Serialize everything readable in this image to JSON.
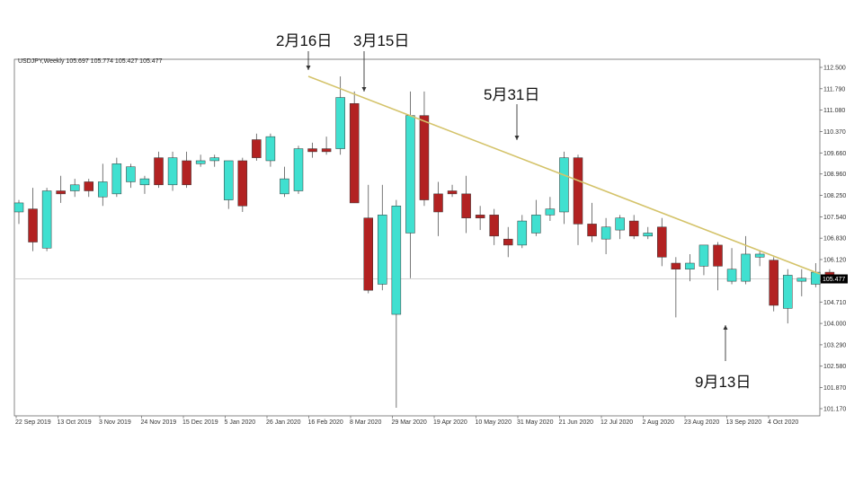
{
  "header": {
    "symbol_line": "USDJPY,Weekly  105.697 105.774 105.427 105.477"
  },
  "annotations": [
    {
      "id": "feb16",
      "text": "2月16日"
    },
    {
      "id": "mar15",
      "text": "3月15日"
    },
    {
      "id": "may31",
      "text": "5月31日"
    },
    {
      "id": "sep13",
      "text": "9月13日"
    }
  ],
  "colors": {
    "up": "#40E0D0",
    "down": "#B22222",
    "trendline": "#D4C36A",
    "outline": "#333333"
  },
  "chart_data": {
    "type": "candlestick",
    "title": "",
    "ylim": [
      100.9,
      112.7
    ],
    "yticks": [
      "112.500",
      "111.790",
      "111.080",
      "110.370",
      "109.660",
      "108.960",
      "108.250",
      "107.540",
      "106.830",
      "106.120",
      "105.410",
      "104.710",
      "104.000",
      "103.290",
      "102.580",
      "101.870",
      "101.170"
    ],
    "xtick_labels": [
      "22 Sep 2019",
      "13 Oct 2019",
      "3 Nov 2019",
      "24 Nov 2019",
      "15 Dec 2019",
      "5 Jan 2020",
      "26 Jan 2020",
      "16 Feb 2020",
      "8 Mar 2020",
      "29 Mar 2020",
      "19 Apr 2020",
      "10 May 2020",
      "31 May 2020",
      "21 Jun 2020",
      "12 Jul 2020",
      "2 Aug 2020",
      "23 Aug 2020",
      "13 Sep 2020",
      "4 Oct 2020"
    ],
    "current_price": "105.477",
    "candles": [
      {
        "o": 107.7,
        "h": 108.1,
        "l": 107.3,
        "c": 108.0
      },
      {
        "o": 107.8,
        "h": 108.5,
        "l": 106.4,
        "c": 106.7
      },
      {
        "o": 106.5,
        "h": 108.5,
        "l": 106.4,
        "c": 108.4
      },
      {
        "o": 108.4,
        "h": 108.9,
        "l": 108.0,
        "c": 108.3
      },
      {
        "o": 108.4,
        "h": 108.8,
        "l": 108.2,
        "c": 108.6
      },
      {
        "o": 108.7,
        "h": 108.8,
        "l": 108.2,
        "c": 108.4
      },
      {
        "o": 108.2,
        "h": 109.3,
        "l": 107.9,
        "c": 108.7
      },
      {
        "o": 108.3,
        "h": 109.5,
        "l": 108.2,
        "c": 109.3
      },
      {
        "o": 108.7,
        "h": 109.3,
        "l": 108.5,
        "c": 109.2
      },
      {
        "o": 108.6,
        "h": 108.9,
        "l": 108.3,
        "c": 108.8
      },
      {
        "o": 109.5,
        "h": 109.7,
        "l": 108.5,
        "c": 108.6
      },
      {
        "o": 108.6,
        "h": 109.7,
        "l": 108.4,
        "c": 109.5
      },
      {
        "o": 109.4,
        "h": 109.7,
        "l": 108.5,
        "c": 108.6
      },
      {
        "o": 109.3,
        "h": 109.6,
        "l": 109.2,
        "c": 109.4
      },
      {
        "o": 109.4,
        "h": 109.6,
        "l": 109.2,
        "c": 109.5
      },
      {
        "o": 108.1,
        "h": 109.4,
        "l": 107.8,
        "c": 109.4
      },
      {
        "o": 109.4,
        "h": 109.5,
        "l": 107.7,
        "c": 107.9
      },
      {
        "o": 110.1,
        "h": 110.3,
        "l": 109.4,
        "c": 109.5
      },
      {
        "o": 109.4,
        "h": 110.3,
        "l": 109.2,
        "c": 110.2
      },
      {
        "o": 108.3,
        "h": 109.2,
        "l": 108.2,
        "c": 108.8
      },
      {
        "o": 108.4,
        "h": 109.9,
        "l": 108.3,
        "c": 109.8
      },
      {
        "o": 109.8,
        "h": 110.0,
        "l": 109.5,
        "c": 109.7
      },
      {
        "o": 109.8,
        "h": 110.2,
        "l": 109.6,
        "c": 109.7
      },
      {
        "o": 109.8,
        "h": 112.2,
        "l": 109.6,
        "c": 111.5
      },
      {
        "o": 111.3,
        "h": 111.7,
        "l": 108.0,
        "c": 108.0
      },
      {
        "o": 107.5,
        "h": 108.6,
        "l": 105.0,
        "c": 105.1
      },
      {
        "o": 105.3,
        "h": 108.6,
        "l": 105.1,
        "c": 107.6
      },
      {
        "o": 104.3,
        "h": 108.1,
        "l": 101.2,
        "c": 107.9
      },
      {
        "o": 107.0,
        "h": 111.7,
        "l": 105.5,
        "c": 110.9
      },
      {
        "o": 110.9,
        "h": 111.7,
        "l": 107.9,
        "c": 108.1
      },
      {
        "o": 108.3,
        "h": 108.7,
        "l": 106.9,
        "c": 107.7
      },
      {
        "o": 108.4,
        "h": 108.6,
        "l": 108.2,
        "c": 108.3
      },
      {
        "o": 108.3,
        "h": 108.9,
        "l": 107.0,
        "c": 107.5
      },
      {
        "o": 107.6,
        "h": 107.9,
        "l": 107.1,
        "c": 107.5
      },
      {
        "o": 107.6,
        "h": 107.8,
        "l": 106.6,
        "c": 106.9
      },
      {
        "o": 106.8,
        "h": 107.2,
        "l": 106.2,
        "c": 106.6
      },
      {
        "o": 106.6,
        "h": 107.6,
        "l": 106.5,
        "c": 107.4
      },
      {
        "o": 107.0,
        "h": 108.1,
        "l": 106.9,
        "c": 107.6
      },
      {
        "o": 107.6,
        "h": 108.2,
        "l": 107.4,
        "c": 107.8
      },
      {
        "o": 107.7,
        "h": 109.7,
        "l": 107.3,
        "c": 109.5
      },
      {
        "o": 109.5,
        "h": 109.6,
        "l": 106.6,
        "c": 107.3
      },
      {
        "o": 107.3,
        "h": 108.0,
        "l": 106.7,
        "c": 106.9
      },
      {
        "o": 106.8,
        "h": 107.5,
        "l": 106.3,
        "c": 107.2
      },
      {
        "o": 107.1,
        "h": 107.6,
        "l": 106.8,
        "c": 107.5
      },
      {
        "o": 107.4,
        "h": 107.6,
        "l": 106.8,
        "c": 106.9
      },
      {
        "o": 106.9,
        "h": 107.2,
        "l": 106.8,
        "c": 107.0
      },
      {
        "o": 107.2,
        "h": 107.5,
        "l": 105.9,
        "c": 106.2
      },
      {
        "o": 106.0,
        "h": 106.2,
        "l": 104.2,
        "c": 105.8
      },
      {
        "o": 105.8,
        "h": 106.3,
        "l": 105.4,
        "c": 106.0
      },
      {
        "o": 105.9,
        "h": 106.5,
        "l": 105.6,
        "c": 106.6
      },
      {
        "o": 106.6,
        "h": 106.7,
        "l": 105.1,
        "c": 105.9
      },
      {
        "o": 105.4,
        "h": 106.5,
        "l": 105.3,
        "c": 105.8
      },
      {
        "o": 105.4,
        "h": 106.9,
        "l": 105.3,
        "c": 106.3
      },
      {
        "o": 106.2,
        "h": 106.4,
        "l": 105.9,
        "c": 106.3
      },
      {
        "o": 106.1,
        "h": 106.2,
        "l": 104.4,
        "c": 104.6
      },
      {
        "o": 104.5,
        "h": 105.8,
        "l": 104.0,
        "c": 105.6
      },
      {
        "o": 105.4,
        "h": 105.8,
        "l": 104.9,
        "c": 105.5
      },
      {
        "o": 105.3,
        "h": 106.0,
        "l": 105.2,
        "c": 105.7
      },
      {
        "o": 105.7,
        "h": 105.8,
        "l": 105.4,
        "c": 105.5
      }
    ]
  }
}
